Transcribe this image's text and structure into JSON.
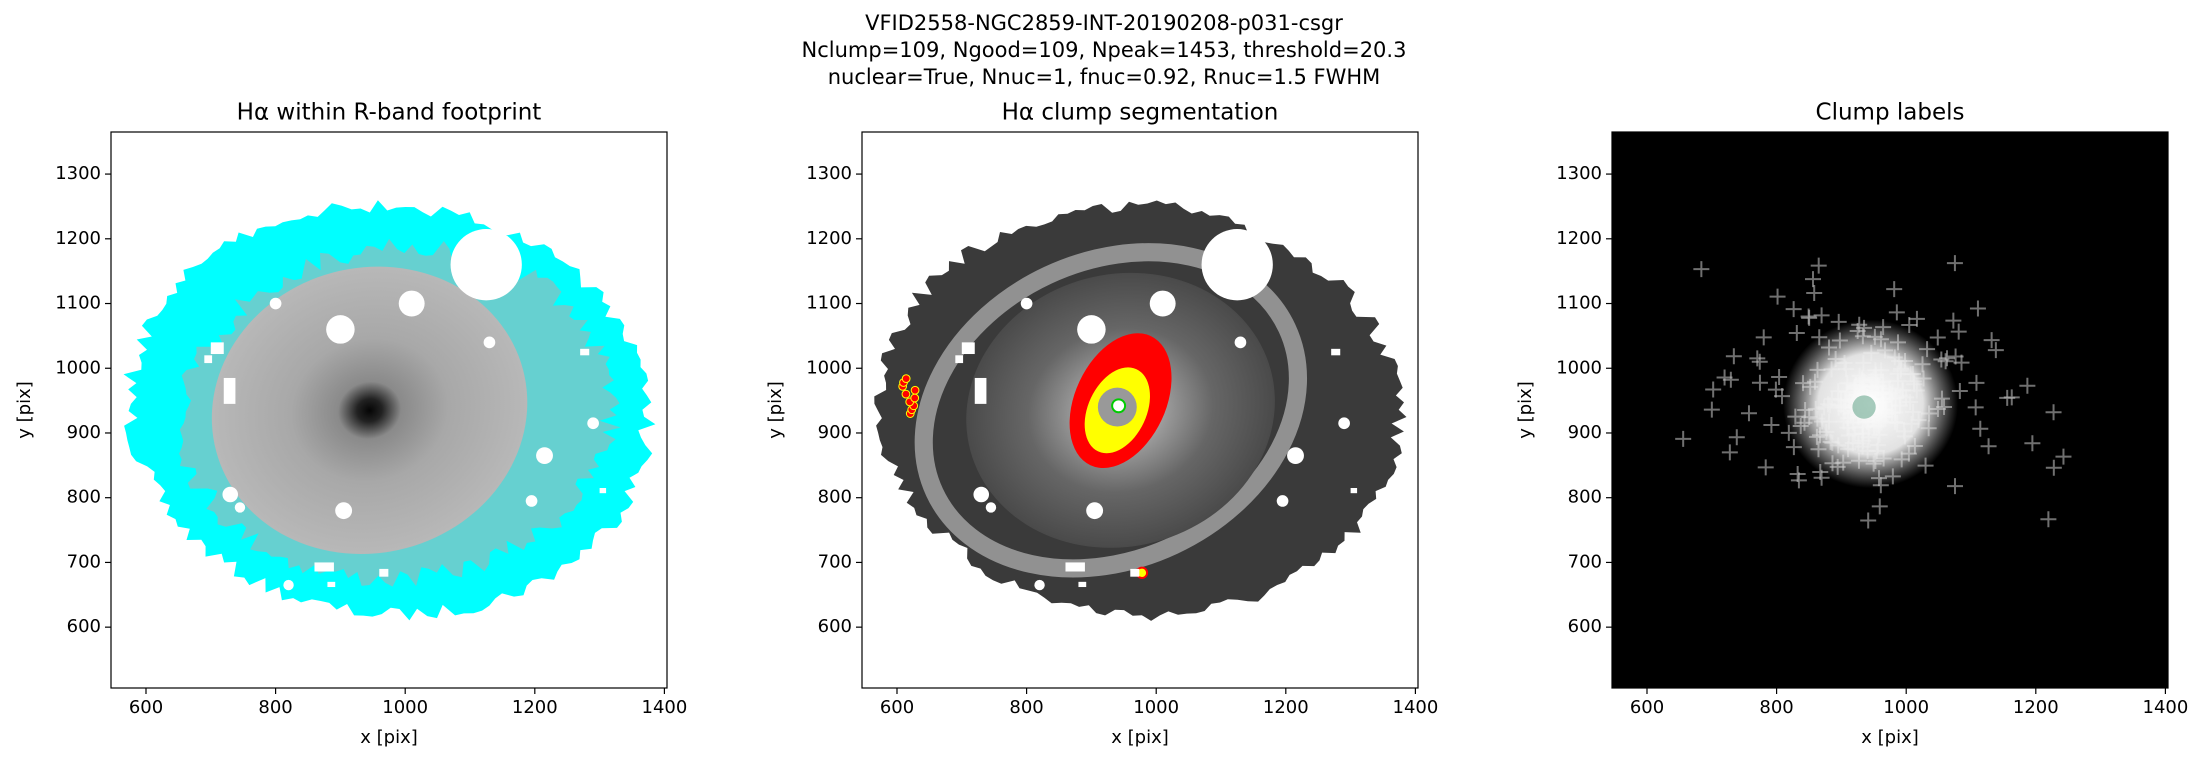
{
  "title": [
    "VFID2558-NGC2859-INT-20190208-p031-csgr",
    "Nclump=109, Ngood=109, Npeak=1453, threshold=20.3",
    "nuclear=True, Nnuc=1, fnuc=0.92, Rnuc=1.5 FWHM"
  ],
  "chart_data": [
    {
      "type": "image",
      "title": "Hα within R-band footprint",
      "xlabel": "x [pix]",
      "ylabel": "y [pix]",
      "xlim": [
        546,
        1404
      ],
      "ylim": [
        506,
        1365
      ],
      "xticks": [
        600,
        800,
        1000,
        1200,
        1400
      ],
      "yticks": [
        600,
        700,
        800,
        900,
        1000,
        1100,
        1200,
        1300
      ]
    },
    {
      "type": "image",
      "title": "Hα clump segmentation",
      "xlabel": "x [pix]",
      "ylabel": "y [pix]",
      "xlim": [
        546,
        1404
      ],
      "ylim": [
        506,
        1365
      ],
      "xticks": [
        600,
        800,
        1000,
        1200,
        1400
      ],
      "yticks": [
        600,
        700,
        800,
        900,
        1000,
        1100,
        1200,
        1300
      ]
    },
    {
      "type": "image",
      "title": "Clump labels",
      "xlabel": "x [pix]",
      "ylabel": "y [pix]",
      "xlim": [
        546,
        1404
      ],
      "ylim": [
        506,
        1365
      ],
      "xticks": [
        600,
        800,
        1000,
        1200,
        1400
      ],
      "yticks": [
        600,
        700,
        800,
        900,
        1000,
        1100,
        1200,
        1300
      ]
    }
  ]
}
